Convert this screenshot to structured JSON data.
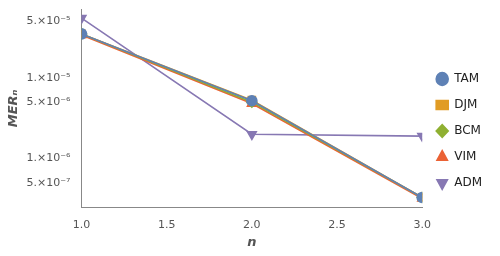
{
  "chart_data": {
    "type": "line",
    "x_label": "n",
    "y_label": "MERₙ",
    "x": [
      1,
      2,
      3
    ],
    "xlim": [
      1,
      3
    ],
    "xticks": [
      {
        "value": 1,
        "label": "1.0"
      },
      1.5,
      {
        "value": 2,
        "label": "2.0"
      },
      2.5,
      {
        "value": 3,
        "label": "3.0"
      }
    ],
    "ylim": [
      2.5e-07,
      7e-05
    ],
    "yticks": [
      {
        "value": 5e-07,
        "label": "5.×10⁻⁷"
      },
      {
        "value": 1e-06,
        "label": "1.×10⁻⁶"
      },
      {
        "value": 5e-06,
        "label": "5.×10⁻⁶"
      },
      {
        "value": 1e-05,
        "label": "1.×10⁻⁵"
      },
      {
        "value": 5e-05,
        "label": "5.×10⁻⁵"
      }
    ],
    "log": "y",
    "grid": false,
    "legend": "right",
    "series": [
      {
        "name": "TAM",
        "color": "#5e81b5",
        "marker": "circle",
        "line_style": "solid",
        "values": [
          3.5e-05,
          5.2e-06,
          3.3e-07
        ]
      },
      {
        "name": "DJM",
        "color": "#e19c24",
        "marker": "square",
        "line_style": "solid",
        "values": [
          3.5e-05,
          5.3e-06,
          3.3e-07
        ]
      },
      {
        "name": "BCM",
        "color": "#8fb032",
        "marker": "diamond",
        "line_style": "solid",
        "values": [
          3.5e-05,
          5e-06,
          3.3e-07
        ]
      },
      {
        "name": "VIM",
        "color": "#eb6235",
        "marker": "triangle",
        "line_style": "solid",
        "values": [
          3.4e-05,
          4.8e-06,
          3.2e-07
        ]
      },
      {
        "name": "ADM",
        "color": "#8778b3",
        "marker": "triangle_down",
        "line_style": "solid",
        "values": [
          5.5e-05,
          2e-06,
          1.9e-06
        ]
      }
    ]
  }
}
